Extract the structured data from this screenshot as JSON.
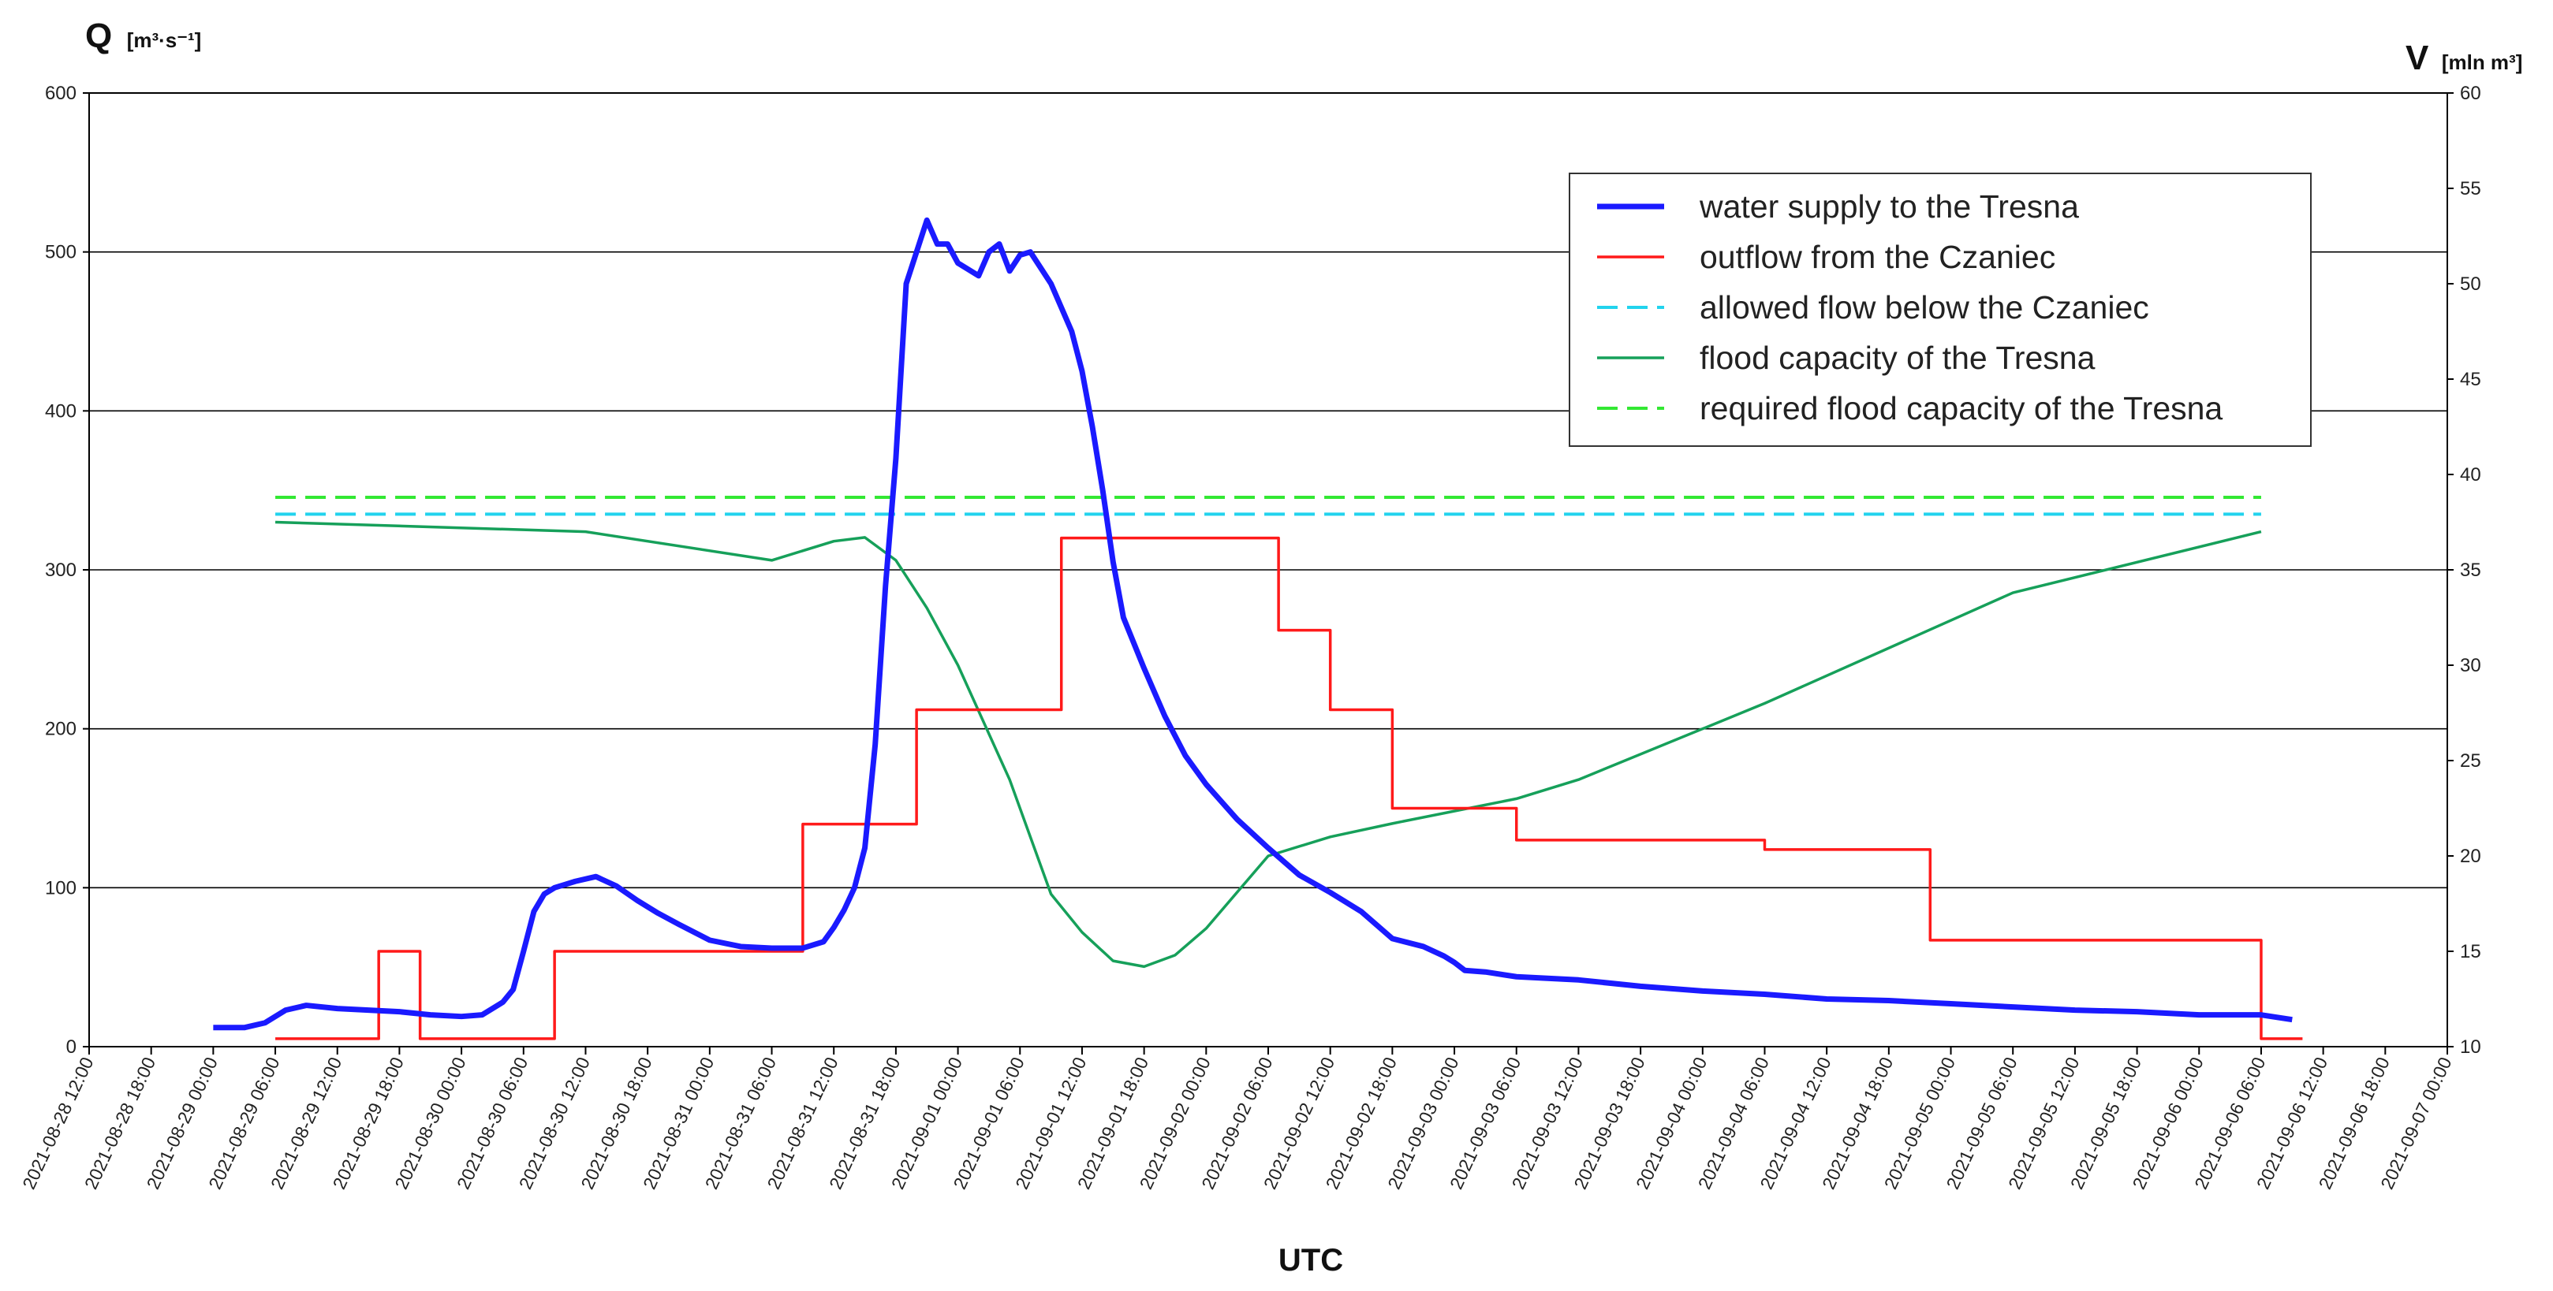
{
  "chart_data": {
    "type": "line",
    "y_left": {
      "label_main": "Q",
      "label_unit": "[m³·s⁻¹]",
      "range": [
        0,
        600
      ],
      "ticks": [
        "0",
        "100",
        "200",
        "300",
        "400",
        "500",
        "600"
      ]
    },
    "y_right": {
      "label_main": "V",
      "label_unit": "[mln m³]",
      "range": [
        10,
        60
      ],
      "ticks": [
        "10",
        "15",
        "20",
        "25",
        "30",
        "35",
        "40",
        "45",
        "50",
        "55",
        "60"
      ]
    },
    "xlabel": "UTC",
    "x_range": [
      "2021-08-28 12:00",
      "2021-09-07 00:00"
    ],
    "x_ticks": [
      "2021-08-28 12:00",
      "2021-08-28 18:00",
      "2021-08-29 00:00",
      "2021-08-29 06:00",
      "2021-08-29 12:00",
      "2021-08-29 18:00",
      "2021-08-30 00:00",
      "2021-08-30 06:00",
      "2021-08-30 12:00",
      "2021-08-30 18:00",
      "2021-08-31 00:00",
      "2021-08-31 06:00",
      "2021-08-31 12:00",
      "2021-08-31 18:00",
      "2021-09-01 00:00",
      "2021-09-01 06:00",
      "2021-09-01 12:00",
      "2021-09-01 18:00",
      "2021-09-02 00:00",
      "2021-09-02 06:00",
      "2021-09-02 12:00",
      "2021-09-02 18:00",
      "2021-09-03 00:00",
      "2021-09-03 06:00",
      "2021-09-03 12:00",
      "2021-09-03 18:00",
      "2021-09-04 00:00",
      "2021-09-04 06:00",
      "2021-09-04 12:00",
      "2021-09-04 18:00",
      "2021-09-05 00:00",
      "2021-09-05 06:00",
      "2021-09-05 12:00",
      "2021-09-05 18:00",
      "2021-09-06 00:00",
      "2021-09-06 06:00",
      "2021-09-06 12:00",
      "2021-09-06 18:00",
      "2021-09-07 00:00"
    ],
    "grid": "horizontal",
    "legend_position": "top-right",
    "series": [
      {
        "name": "water supply to the Tresna",
        "axis": "left",
        "color": "#1a1aff",
        "style": "solid-thick",
        "x": [
          "2021-08-29 00:00",
          "2021-08-29 03:00",
          "2021-08-29 05:00",
          "2021-08-29 07:00",
          "2021-08-29 09:00",
          "2021-08-29 12:00",
          "2021-08-29 15:00",
          "2021-08-29 18:00",
          "2021-08-29 21:00",
          "2021-08-30 00:00",
          "2021-08-30 02:00",
          "2021-08-30 04:00",
          "2021-08-30 05:00",
          "2021-08-30 06:00",
          "2021-08-30 07:00",
          "2021-08-30 08:00",
          "2021-08-30 09:00",
          "2021-08-30 10:00",
          "2021-08-30 11:00",
          "2021-08-30 13:00",
          "2021-08-30 15:00",
          "2021-08-30 17:00",
          "2021-08-30 19:00",
          "2021-08-30 21:00",
          "2021-08-31 00:00",
          "2021-08-31 03:00",
          "2021-08-31 06:00",
          "2021-08-31 09:00",
          "2021-08-31 11:00",
          "2021-08-31 12:00",
          "2021-08-31 13:00",
          "2021-08-31 14:00",
          "2021-08-31 15:00",
          "2021-08-31 16:00",
          "2021-08-31 17:00",
          "2021-08-31 18:00",
          "2021-08-31 19:00",
          "2021-08-31 20:00",
          "2021-08-31 21:00",
          "2021-08-31 22:00",
          "2021-08-31 23:00",
          "2021-09-01 00:00",
          "2021-09-01 02:00",
          "2021-09-01 03:00",
          "2021-09-01 04:00",
          "2021-09-01 05:00",
          "2021-09-01 06:00",
          "2021-09-01 07:00",
          "2021-09-01 08:00",
          "2021-09-01 09:00",
          "2021-09-01 11:00",
          "2021-09-01 12:00",
          "2021-09-01 13:00",
          "2021-09-01 14:00",
          "2021-09-01 15:00",
          "2021-09-01 16:00",
          "2021-09-01 18:00",
          "2021-09-01 20:00",
          "2021-09-01 22:00",
          "2021-09-02 00:00",
          "2021-09-02 03:00",
          "2021-09-02 06:00",
          "2021-09-02 09:00",
          "2021-09-02 12:00",
          "2021-09-02 15:00",
          "2021-09-02 18:00",
          "2021-09-02 21:00",
          "2021-09-02 23:00",
          "2021-09-03 00:00",
          "2021-09-03 01:00",
          "2021-09-03 03:00",
          "2021-09-03 06:00",
          "2021-09-03 12:00",
          "2021-09-03 18:00",
          "2021-09-04 00:00",
          "2021-09-04 06:00",
          "2021-09-04 12:00",
          "2021-09-04 18:00",
          "2021-09-05 00:00",
          "2021-09-05 06:00",
          "2021-09-05 12:00",
          "2021-09-05 18:00",
          "2021-09-06 00:00",
          "2021-09-06 06:00",
          "2021-09-06 09:00"
        ],
        "y": [
          12,
          12,
          15,
          23,
          26,
          24,
          23,
          22,
          20,
          19,
          20,
          28,
          36,
          60,
          85,
          96,
          100,
          102,
          104,
          107,
          101,
          92,
          84,
          77,
          67,
          63,
          62,
          62,
          66,
          75,
          86,
          100,
          125,
          190,
          290,
          370,
          480,
          500,
          520,
          505,
          505,
          493,
          485,
          500,
          505,
          488,
          498,
          500,
          490,
          480,
          450,
          425,
          390,
          350,
          305,
          270,
          238,
          208,
          183,
          165,
          143,
          125,
          108,
          97,
          85,
          68,
          63,
          57,
          53,
          48,
          47,
          44,
          42,
          38,
          35,
          33,
          30,
          29,
          27,
          25,
          23,
          22,
          20,
          20,
          17
        ]
      },
      {
        "name": "outflow from the Czaniec",
        "axis": "left",
        "color": "#ff1a1a",
        "style": "step",
        "x": [
          "2021-08-29 06:00",
          "2021-08-29 16:00",
          "2021-08-29 20:00",
          "2021-08-30 09:00",
          "2021-08-31 09:00",
          "2021-08-31 20:00",
          "2021-09-01 10:00",
          "2021-09-02 07:00",
          "2021-09-02 12:00",
          "2021-09-02 18:00",
          "2021-09-03 06:00",
          "2021-09-04 06:00",
          "2021-09-04 22:00",
          "2021-09-06 06:00",
          "2021-09-06 10:00"
        ],
        "y": [
          5,
          60,
          5,
          60,
          140,
          212,
          320,
          262,
          212,
          150,
          130,
          124,
          67,
          5,
          5
        ]
      },
      {
        "name": "allowed flow below the Czaniec",
        "axis": "left",
        "color": "#22d3ee",
        "style": "dashed",
        "x": [
          "2021-08-29 06:00",
          "2021-09-06 06:00"
        ],
        "y": [
          335,
          335
        ]
      },
      {
        "name": "flood capacity of the Tresna",
        "axis": "right",
        "color": "#16a05a",
        "style": "solid",
        "x": [
          "2021-08-29 06:00",
          "2021-08-30 12:00",
          "2021-08-31 06:00",
          "2021-08-31 12:00",
          "2021-08-31 15:00",
          "2021-08-31 18:00",
          "2021-08-31 21:00",
          "2021-09-01 00:00",
          "2021-09-01 05:00",
          "2021-09-01 09:00",
          "2021-09-01 12:00",
          "2021-09-01 15:00",
          "2021-09-01 18:00",
          "2021-09-01 21:00",
          "2021-09-02 00:00",
          "2021-09-02 06:00",
          "2021-09-02 12:00",
          "2021-09-02 18:00",
          "2021-09-03 06:00",
          "2021-09-03 12:00",
          "2021-09-04 06:00",
          "2021-09-05 06:00",
          "2021-09-06 06:00"
        ],
        "y": [
          37.5,
          37.0,
          35.5,
          36.5,
          36.7,
          35.5,
          33.0,
          30.0,
          24.0,
          18.0,
          16.0,
          14.5,
          14.2,
          14.8,
          16.2,
          20.0,
          21.0,
          21.7,
          23.0,
          24.0,
          28.0,
          33.8,
          37.0
        ]
      },
      {
        "name": "required flood capacity of the Tresna",
        "axis": "right",
        "color": "#33e833",
        "style": "dashed",
        "x": [
          "2021-08-29 06:00",
          "2021-09-06 06:00"
        ],
        "y": [
          38.8,
          38.8
        ]
      }
    ]
  }
}
